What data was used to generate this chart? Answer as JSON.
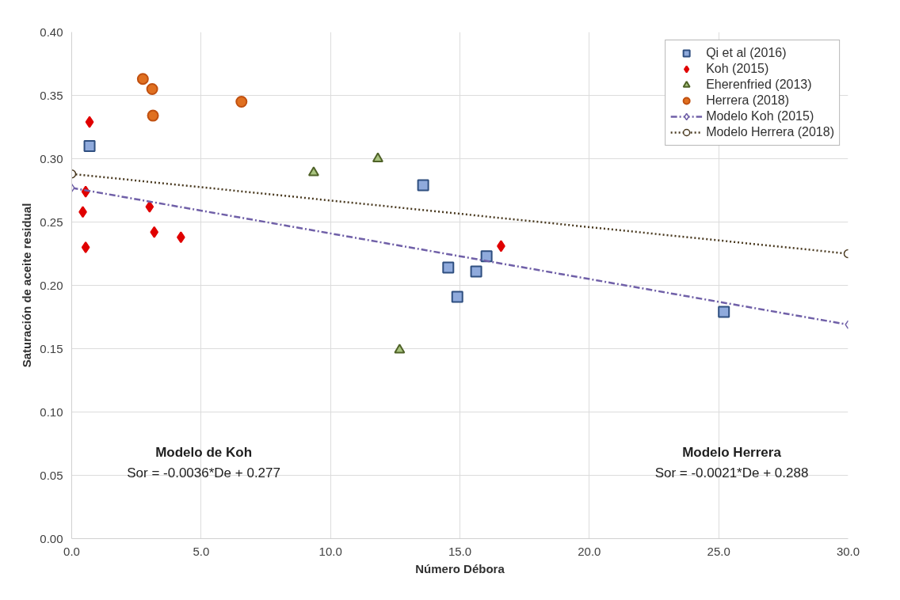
{
  "chart_data": {
    "type": "scatter",
    "xlabel": "Número Débora",
    "ylabel": "Saturación de aceite residual",
    "xlim": [
      0,
      30
    ],
    "ylim": [
      0,
      0.4
    ],
    "xticks": [
      {
        "value": 0,
        "label": "0.0"
      },
      {
        "value": 5,
        "label": "5.0"
      },
      {
        "value": 10,
        "label": "10.0"
      },
      {
        "value": 15,
        "label": "15.0"
      },
      {
        "value": 20,
        "label": "20.0"
      },
      {
        "value": 25,
        "label": "25.0"
      },
      {
        "value": 30,
        "label": "30.0"
      }
    ],
    "yticks": [
      {
        "value": 0,
        "label": "0.00"
      },
      {
        "value": 0.05,
        "label": "0.05"
      },
      {
        "value": 0.1,
        "label": "0.10"
      },
      {
        "value": 0.15,
        "label": "0.15"
      },
      {
        "value": 0.2,
        "label": "0.20"
      },
      {
        "value": 0.25,
        "label": "0.25"
      },
      {
        "value": 0.3,
        "label": "0.30"
      },
      {
        "value": 0.35,
        "label": "0.35"
      },
      {
        "value": 0.4,
        "label": "0.40"
      }
    ],
    "grid": true,
    "legend": "top right",
    "series": [
      {
        "name": "Qi et al (2016)",
        "marker": "square",
        "color": "#8faadc",
        "x": [
          0.69,
          13.58,
          16.03,
          14.55,
          15.63,
          14.9,
          25.2
        ],
        "values": [
          0.31,
          0.279,
          0.223,
          0.214,
          0.211,
          0.191,
          0.179
        ]
      },
      {
        "name": "Koh (2015)",
        "marker": "diamond",
        "color": "#e00000",
        "x": [
          0.69,
          0.54,
          0.43,
          3.01,
          3.19,
          4.22,
          0.54,
          16.59
        ],
        "values": [
          0.329,
          0.274,
          0.258,
          0.262,
          0.242,
          0.238,
          0.23,
          0.231
        ]
      },
      {
        "name": "Eherenfried (2013)",
        "marker": "triangle",
        "color": "#a9c47f",
        "x": [
          9.35,
          11.83,
          12.67
        ],
        "values": [
          0.289,
          0.3,
          0.149
        ]
      },
      {
        "name": "Herrera (2018)",
        "marker": "circle",
        "color": "#e07020",
        "x": [
          2.75,
          3.11,
          3.14,
          6.56
        ],
        "values": [
          0.363,
          0.355,
          0.334,
          0.345
        ]
      },
      {
        "name": "Modelo Koh (2015)",
        "type": "line",
        "marker": "diamond",
        "line_style": "dashed",
        "color": "#7060a8",
        "x": [
          0,
          30
        ],
        "values": [
          0.277,
          0.169
        ]
      },
      {
        "name": "Modelo Herrera (2018)",
        "type": "line",
        "marker": "circle",
        "line_style": "dotted",
        "color": "#4a3a20",
        "x": [
          0,
          30
        ],
        "values": [
          0.288,
          0.225
        ]
      }
    ],
    "annotations": [
      "Modelo de Koh",
      "Sor = -0.0036*De + 0.277",
      "Modelo Herrera",
      "Sor = -0.0021*De + 0.288"
    ]
  }
}
